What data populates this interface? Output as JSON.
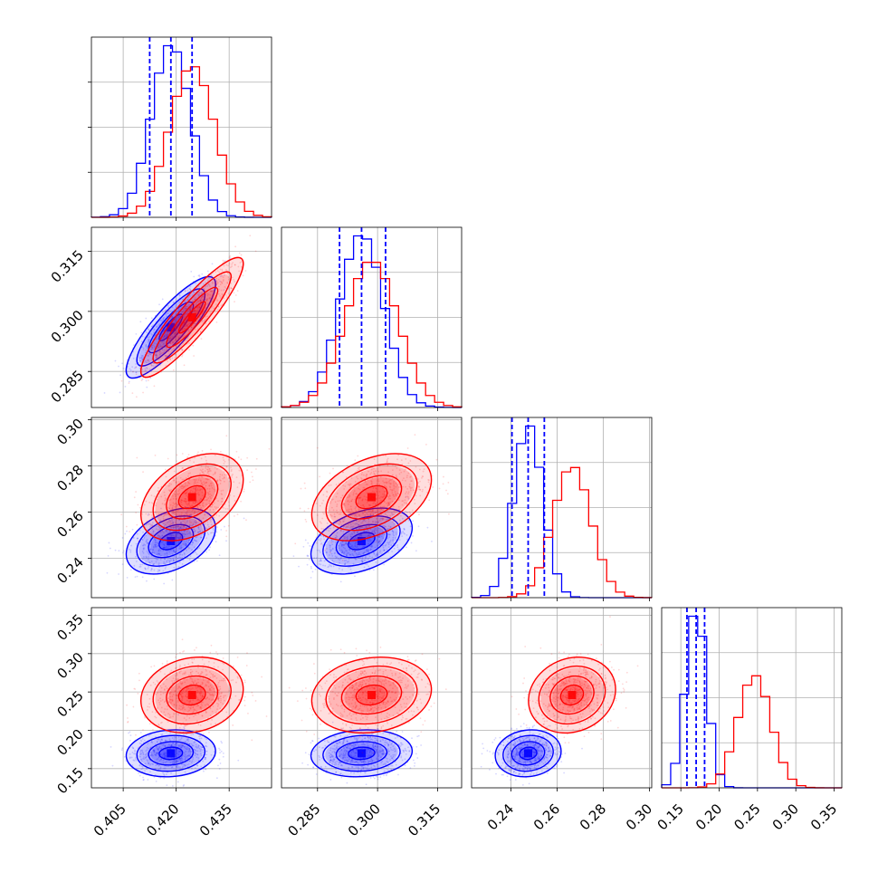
{
  "colors": {
    "blue": "#0000ff",
    "red": "#ff0000",
    "grid": "#b0b0b0",
    "axis": "#000000"
  },
  "chart_data": {
    "type": "corner",
    "grid": true,
    "legend": "none",
    "params": [
      {
        "range": [
          0.396,
          0.447
        ],
        "ticks": [
          0.405,
          0.42,
          0.435
        ],
        "tick_labels": [
          "0.405",
          "0.420",
          "0.435"
        ]
      },
      {
        "range": [
          0.276,
          0.321
        ],
        "ticks": [
          0.285,
          0.3,
          0.315
        ],
        "tick_labels": [
          "0.285",
          "0.300",
          "0.315"
        ]
      },
      {
        "range": [
          0.223,
          0.301
        ],
        "ticks": [
          0.24,
          0.26,
          0.28,
          0.3
        ],
        "tick_labels": [
          "0.24",
          "0.26",
          "0.28",
          "0.30"
        ]
      },
      {
        "range": [
          0.125,
          0.36
        ],
        "ticks": [
          0.15,
          0.2,
          0.25,
          0.3,
          0.35
        ],
        "tick_labels": [
          "0.15",
          "0.20",
          "0.25",
          "0.30",
          "0.35"
        ]
      }
    ],
    "series": [
      {
        "color": "#0000ff",
        "mean": [
          0.4185,
          0.296,
          0.2475,
          0.17
        ],
        "std": [
          0.0055,
          0.0055,
          0.0062,
          0.0133
        ],
        "corr": [
          [
            1,
            0.85,
            0.4,
            0.1
          ],
          [
            0.85,
            1,
            0.4,
            0.1
          ],
          [
            0.4,
            0.4,
            1,
            0.1
          ],
          [
            0.1,
            0.1,
            0.1,
            1
          ]
        ],
        "quantiles": [
          [
            0.4125,
            0.4185,
            0.4245
          ],
          [
            0.2905,
            0.296,
            0.302
          ],
          [
            0.2405,
            0.2475,
            0.2545
          ],
          [
            0.158,
            0.17,
            0.181
          ]
        ]
      },
      {
        "color": "#ff0000",
        "mean": [
          0.4245,
          0.2985,
          0.2665,
          0.246
        ],
        "std": [
          0.0063,
          0.0065,
          0.0082,
          0.0215
        ],
        "corr": [
          [
            1,
            0.9,
            0.4,
            0.15
          ],
          [
            0.9,
            1,
            0.4,
            0.15
          ],
          [
            0.4,
            0.4,
            1,
            0.15
          ],
          [
            0.15,
            0.15,
            0.15,
            1
          ]
        ]
      }
    ]
  }
}
